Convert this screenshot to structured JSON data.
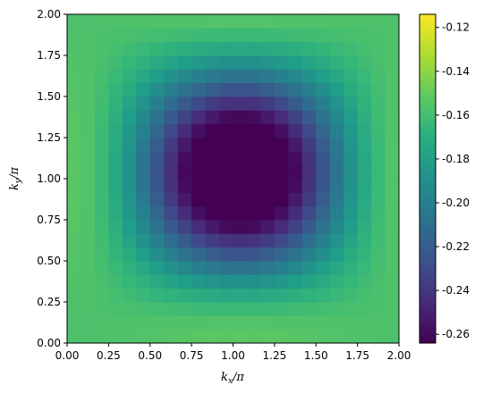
{
  "chart_data": {
    "type": "heatmap",
    "title": "",
    "xlabel_base": "k",
    "xlabel_sub": "x",
    "xlabel_tail": "/π",
    "ylabel_base": "k",
    "ylabel_sub": "y",
    "ylabel_tail": "/π",
    "xlim": [
      0,
      2
    ],
    "ylim": [
      0,
      2
    ],
    "grid": false,
    "x_ticks": [
      "0.00",
      "0.25",
      "0.50",
      "0.75",
      "1.00",
      "1.25",
      "1.50",
      "1.75",
      "2.00"
    ],
    "y_ticks": [
      "0.00",
      "0.25",
      "0.50",
      "0.75",
      "1.00",
      "1.25",
      "1.50",
      "1.75",
      "2.00"
    ],
    "grid_size": [
      24,
      24
    ],
    "cell_step": 0.08333,
    "formula": "value = -0.19 + 0.035*(cos kx + cos ky) - 0.037*cos kx*cos ky",
    "colormap": "viridis",
    "colorbar": {
      "min": -0.264,
      "max": -0.114,
      "ticks": [
        "-0.12",
        "-0.14",
        "-0.16",
        "-0.18",
        "-0.20",
        "-0.22",
        "-0.24",
        "-0.26"
      ],
      "tick_values": [
        -0.12,
        -0.14,
        -0.16,
        -0.18,
        -0.2,
        -0.22,
        -0.24,
        -0.26
      ]
    }
  }
}
